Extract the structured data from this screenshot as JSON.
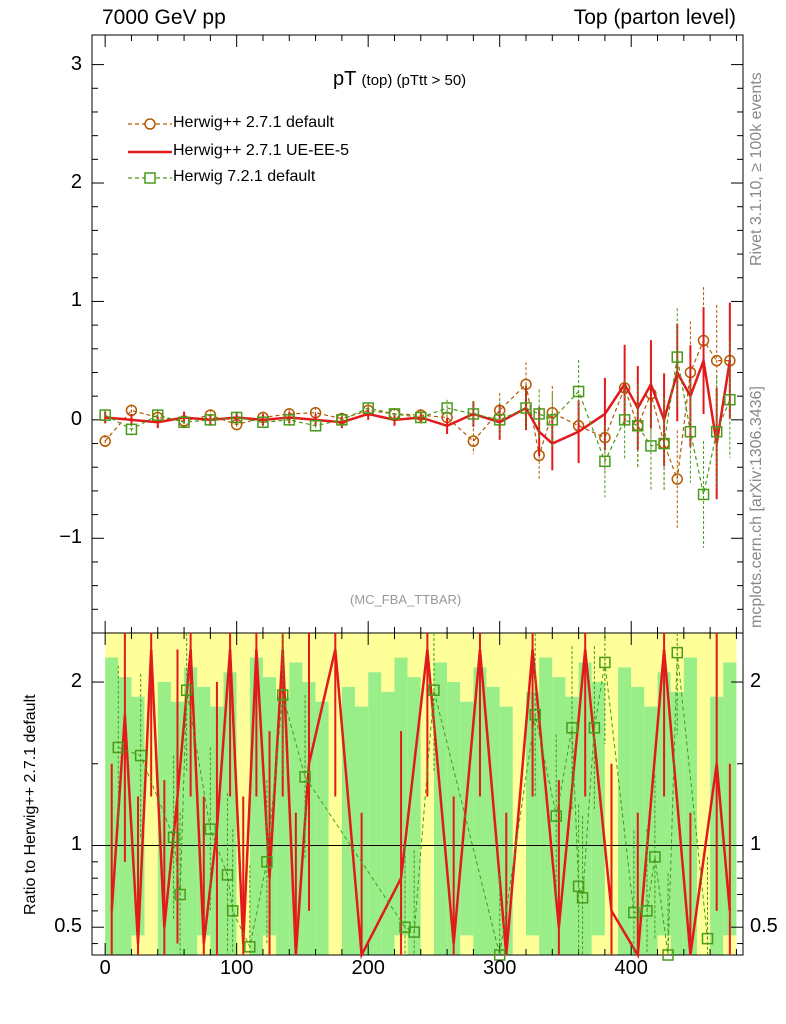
{
  "header": {
    "left": "7000 GeV pp",
    "right": "Top (parton level)"
  },
  "side_labels": {
    "rivet": "Rivet 3.1.10, ≥ 100k events",
    "mcplots": "mcplots.cern.ch [arXiv:1306.3436]"
  },
  "analysis_label": "(MC_FBA_TTBAR)",
  "title": {
    "main": "pT",
    "sub": "(top) (pTtt > 50)"
  },
  "chart_data": [
    {
      "type": "line",
      "panel": "main",
      "xlim": [
        -10,
        485
      ],
      "ylim": [
        -1.8,
        3.25
      ],
      "yticks": [
        3,
        2,
        1,
        0,
        -1
      ],
      "ytick_labels": [
        "3",
        "2",
        "1",
        "0",
        "−1"
      ],
      "legend_position": "top-left",
      "series": [
        {
          "name": "Herwig++ 2.7.1 default",
          "color": "#b35900",
          "marker": "circle",
          "style": "dashed",
          "x": [
            0,
            20,
            40,
            60,
            80,
            100,
            120,
            140,
            160,
            180,
            200,
            220,
            240,
            260,
            280,
            300,
            320,
            330,
            340,
            360,
            380,
            395,
            405,
            415,
            425,
            435,
            445,
            455,
            465,
            475
          ],
          "y": [
            -0.18,
            0.08,
            0.02,
            -0.01,
            0.04,
            -0.04,
            0.02,
            0.05,
            0.06,
            0.01,
            0.08,
            0.05,
            0.04,
            0.02,
            -0.18,
            0.08,
            0.3,
            -0.3,
            0.06,
            -0.05,
            -0.15,
            0.27,
            -0.05,
            0.22,
            -0.2,
            -0.5,
            0.4,
            0.67,
            0.5,
            0.5
          ]
        },
        {
          "name": "Herwig++ 2.7.1 UE-EE-5",
          "color": "#e31a1c",
          "marker": "none",
          "style": "solid",
          "x": [
            0,
            20,
            40,
            60,
            80,
            100,
            120,
            140,
            160,
            180,
            200,
            220,
            240,
            260,
            280,
            300,
            320,
            330,
            340,
            360,
            380,
            395,
            405,
            415,
            425,
            435,
            445,
            455,
            465,
            475
          ],
          "y": [
            0.02,
            0.0,
            -0.02,
            0.02,
            0.0,
            0.02,
            0.0,
            0.02,
            0.0,
            -0.02,
            0.05,
            0.0,
            0.02,
            -0.05,
            0.05,
            -0.02,
            0.1,
            -0.1,
            -0.2,
            -0.1,
            0.05,
            0.3,
            0.1,
            0.3,
            0.0,
            0.4,
            0.2,
            0.5,
            -0.2,
            0.5
          ]
        },
        {
          "name": "Herwig 7.2.1 default",
          "color": "#4a9a1a",
          "marker": "square",
          "style": "dashed",
          "x": [
            0,
            20,
            40,
            60,
            80,
            100,
            120,
            140,
            160,
            180,
            200,
            220,
            240,
            260,
            280,
            300,
            320,
            330,
            340,
            360,
            380,
            395,
            405,
            415,
            425,
            435,
            445,
            455,
            465,
            475
          ],
          "y": [
            0.04,
            -0.08,
            0.04,
            -0.02,
            0.0,
            0.02,
            -0.02,
            0.0,
            -0.05,
            0.0,
            0.1,
            0.05,
            0.02,
            0.1,
            0.05,
            0.0,
            0.1,
            0.05,
            0.0,
            0.24,
            -0.35,
            0.0,
            -0.05,
            -0.22,
            -0.2,
            0.53,
            -0.1,
            -0.63,
            -0.1,
            0.17
          ]
        }
      ]
    },
    {
      "type": "line",
      "panel": "ratio",
      "ylabel": "Ratio to Herwig++ 2.7.1 default",
      "xlim": [
        -10,
        485
      ],
      "ylim": [
        0.33,
        2.3
      ],
      "xticks": [
        0,
        100,
        200,
        300,
        400
      ],
      "xtick_labels": [
        "0",
        "100",
        "200",
        "300",
        "400"
      ],
      "yticks": [
        2,
        1,
        0.5
      ],
      "ytick_labels": [
        "2",
        "1",
        "0.5"
      ],
      "series": [
        {
          "name": "Herwig++ 2.7.1 UE-EE-5",
          "color": "#e31a1c",
          "x": [
            5,
            15,
            25,
            35,
            45,
            55,
            65,
            75,
            85,
            95,
            105,
            115,
            125,
            135,
            145,
            155,
            175,
            195,
            225,
            245,
            265,
            285,
            305,
            325,
            345,
            365,
            385,
            405,
            425,
            445,
            465,
            475
          ],
          "y": [
            0.6,
            1.8,
            0.4,
            2.2,
            0.5,
            1.3,
            2.2,
            0.4,
            1.1,
            2.2,
            0.4,
            2.2,
            0.8,
            2.2,
            0.3,
            1.5,
            2.2,
            0.3,
            0.8,
            2.2,
            0.4,
            2.2,
            0.3,
            2.2,
            0.5,
            2.2,
            0.6,
            0.3,
            2.2,
            0.3,
            1.5,
            0.6
          ]
        },
        {
          "name": "Herwig 7.2.1 default",
          "color": "#4a9a1a",
          "x": [
            10,
            27,
            52,
            57,
            62,
            80,
            93,
            97,
            110,
            123,
            135,
            152,
            228,
            235,
            250,
            300,
            327,
            343,
            355,
            360,
            363,
            372,
            380,
            402,
            412,
            418,
            428,
            435,
            458
          ],
          "y": [
            1.6,
            1.55,
            1.05,
            0.7,
            1.95,
            1.1,
            0.82,
            0.6,
            0.38,
            0.9,
            1.92,
            1.42,
            0.5,
            0.47,
            1.95,
            0.33,
            1.8,
            1.18,
            1.72,
            0.75,
            0.68,
            1.72,
            2.12,
            0.59,
            0.6,
            0.93,
            0.33,
            2.18,
            0.43
          ]
        }
      ]
    }
  ]
}
